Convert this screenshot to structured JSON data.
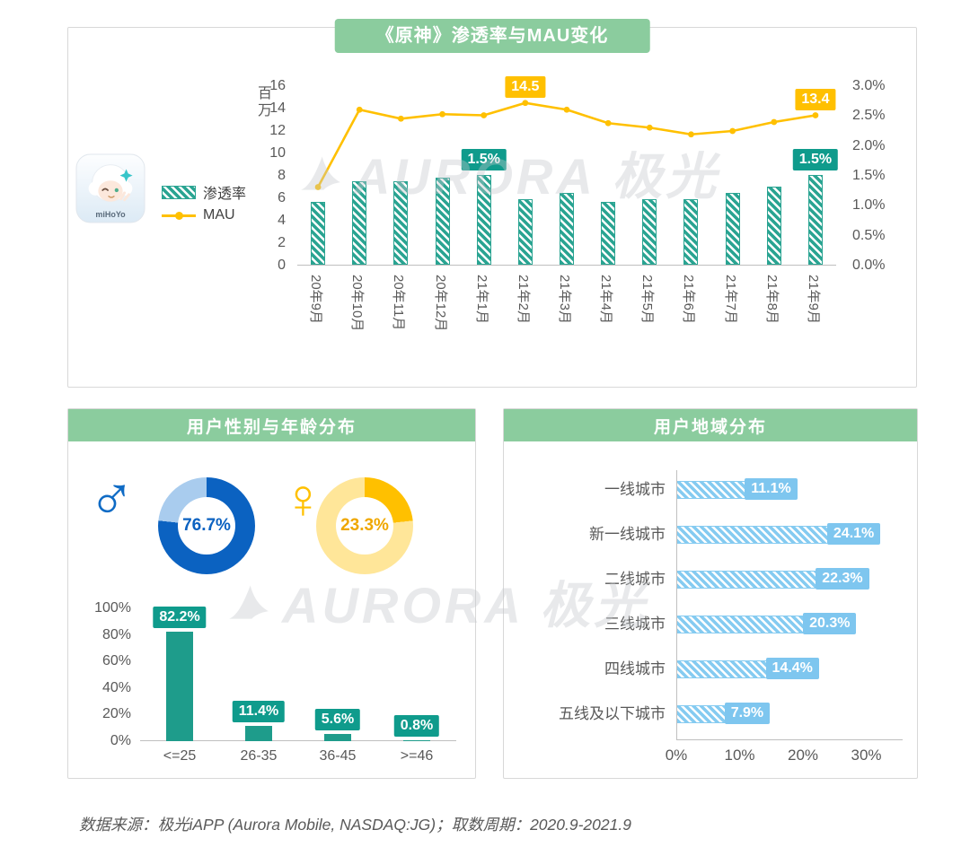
{
  "watermark": {
    "text": "AURORA 极光"
  },
  "footer": "数据来源：极光iAPP (Aurora Mobile, NASDAQ:JG)；取数周期：2020.9-2021.9",
  "top_chart": {
    "title": "《原神》渗透率与MAU变化",
    "icon_caption": "miHoYo",
    "left_axis_label": "百万",
    "legend": {
      "bar": "渗透率",
      "line": "MAU"
    }
  },
  "gender_age": {
    "title": "用户性别与年龄分布",
    "male_symbol": "♂",
    "female_symbol": "♀",
    "male_value": "76.7%",
    "female_value": "23.3%"
  },
  "region": {
    "title": "用户地域分布"
  },
  "colors": {
    "header_green": "#8BCC9E",
    "teal": "#2AA492",
    "teal_label": "#0F9B8C",
    "gold": "#FFC000",
    "blue_dark": "#0B62C1",
    "blue_light": "#A9CCEE",
    "gold_light": "#FFE699",
    "female_text": "#EFA700",
    "lightblue": "#7EC6EF",
    "lightblue_bar": "#85CBF1",
    "axis_text": "#595959",
    "axis_line": "#BFBFBF"
  },
  "chart_data": [
    {
      "type": "bar+line",
      "title": "《原神》渗透率与MAU变化",
      "categories": [
        "20年9月",
        "20年10月",
        "20年11月",
        "20年12月",
        "21年1月",
        "21年2月",
        "21年3月",
        "21年4月",
        "21年5月",
        "21年6月",
        "21年7月",
        "21年8月",
        "21年9月"
      ],
      "series": [
        {
          "name": "渗透率",
          "type": "bar",
          "axis": "right",
          "unit": "%",
          "values": [
            1.05,
            1.4,
            1.4,
            1.45,
            1.5,
            1.1,
            1.2,
            1.05,
            1.1,
            1.1,
            1.2,
            1.3,
            1.5
          ]
        },
        {
          "name": "MAU",
          "type": "line",
          "axis": "left",
          "unit": "百万",
          "values": [
            7.0,
            13.9,
            13.1,
            13.5,
            13.4,
            14.5,
            13.9,
            12.7,
            12.3,
            11.7,
            12.0,
            12.8,
            13.4
          ]
        }
      ],
      "left_axis": {
        "label": "百万",
        "min": 0,
        "max": 16,
        "ticks": [
          0,
          2,
          4,
          6,
          8,
          10,
          12,
          14,
          16
        ]
      },
      "right_axis": {
        "min": 0,
        "max": 3,
        "ticks": [
          "0.0%",
          "0.5%",
          "1.0%",
          "1.5%",
          "2.0%",
          "2.5%",
          "3.0%"
        ]
      },
      "annotations": [
        {
          "on": "line",
          "index": 5,
          "text": "14.5"
        },
        {
          "on": "line",
          "index": 12,
          "text": "13.4"
        },
        {
          "on": "bar",
          "index": 4,
          "text": "1.5%"
        },
        {
          "on": "bar",
          "index": 12,
          "text": "1.5%"
        }
      ],
      "legend_position": "left"
    },
    {
      "type": "donut+bar",
      "title": "用户性别与年龄分布",
      "donuts": [
        {
          "label": "男",
          "value": 76.7
        },
        {
          "label": "女",
          "value": 23.3
        }
      ],
      "age_bar": {
        "categories": [
          "<=25",
          "26-35",
          "36-45",
          ">=46"
        ],
        "values": [
          82.2,
          11.4,
          5.6,
          0.8
        ],
        "ylim": [
          0,
          100
        ],
        "yticks": [
          "0%",
          "20%",
          "40%",
          "60%",
          "80%",
          "100%"
        ]
      }
    },
    {
      "type": "bar-horizontal",
      "title": "用户地域分布",
      "categories": [
        "一线城市",
        "新一线城市",
        "二线城市",
        "三线城市",
        "四线城市",
        "五线及以下城市"
      ],
      "values": [
        11.1,
        24.1,
        22.3,
        20.3,
        14.4,
        7.9
      ],
      "xlim": [
        0,
        33
      ],
      "xticks": [
        "0%",
        "10%",
        "20%",
        "30%"
      ]
    }
  ]
}
